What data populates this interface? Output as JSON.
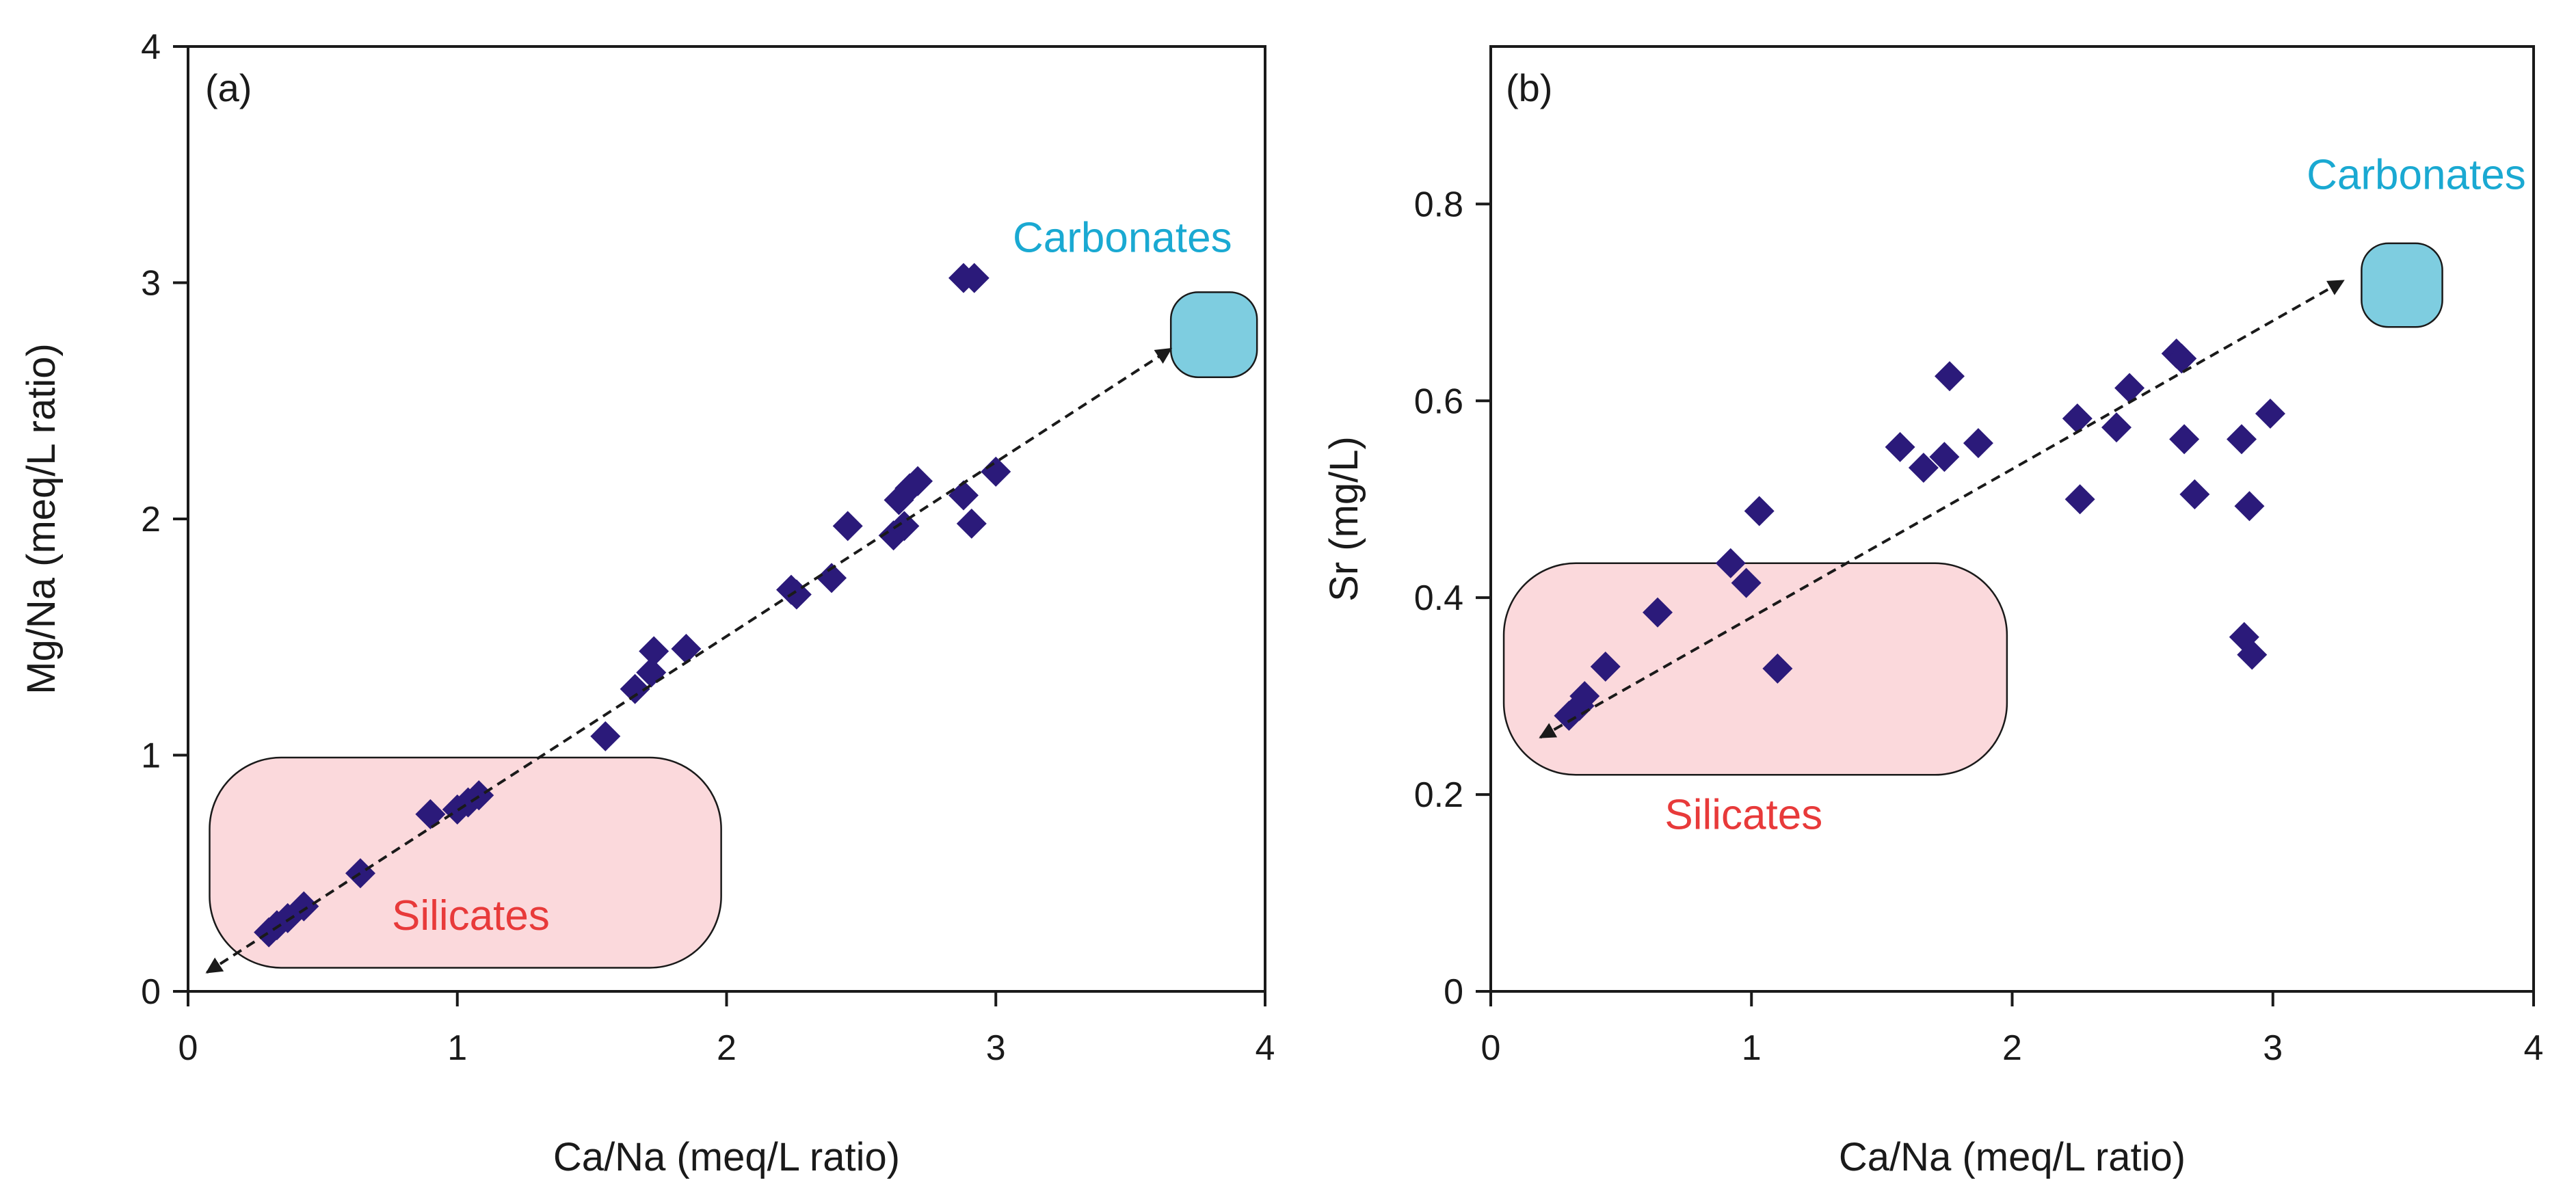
{
  "colors": {
    "marker": "#2b1a7a",
    "silicates_fill": "#fbd9dc",
    "carbonates_fill": "#7ecde0",
    "silicates_text": "#e83a3a",
    "carbonates_text": "#1aa9d2",
    "axis": "#1a1a1a"
  },
  "chart_data": [
    {
      "type": "scatter",
      "panel_label": "(a)",
      "xlabel": "Ca/Na  (meq/L ratio)",
      "ylabel": "Mg/Na (meq/L ratio)",
      "xlim": [
        0,
        4
      ],
      "ylim": [
        0,
        4
      ],
      "x_ticks": [
        0,
        1,
        2,
        3,
        4
      ],
      "y_ticks": [
        0,
        1,
        2,
        3,
        4
      ],
      "x_tick_labels": [
        "0",
        "1",
        "2",
        "3",
        "4"
      ],
      "y_tick_labels": [
        "0",
        "1",
        "2",
        "3",
        "4"
      ],
      "points": [
        [
          0.3,
          0.25
        ],
        [
          0.33,
          0.28
        ],
        [
          0.37,
          0.31
        ],
        [
          0.43,
          0.36
        ],
        [
          0.64,
          0.5
        ],
        [
          0.9,
          0.75
        ],
        [
          1.0,
          0.77
        ],
        [
          1.04,
          0.8
        ],
        [
          1.08,
          0.83
        ],
        [
          1.55,
          1.08
        ],
        [
          1.66,
          1.28
        ],
        [
          1.72,
          1.35
        ],
        [
          1.73,
          1.44
        ],
        [
          1.85,
          1.45
        ],
        [
          2.24,
          1.7
        ],
        [
          2.26,
          1.68
        ],
        [
          2.39,
          1.75
        ],
        [
          2.45,
          1.97
        ],
        [
          2.62,
          1.93
        ],
        [
          2.64,
          2.08
        ],
        [
          2.66,
          1.97
        ],
        [
          2.68,
          2.13
        ],
        [
          2.71,
          2.16
        ],
        [
          2.88,
          2.1
        ],
        [
          2.91,
          1.98
        ],
        [
          3.0,
          2.2
        ],
        [
          2.88,
          3.02
        ],
        [
          2.92,
          3.02
        ]
      ],
      "trend_arrow": {
        "start": [
          0.07,
          0.08
        ],
        "end": [
          3.65,
          2.72
        ]
      },
      "regions": [
        {
          "label": "Silicates",
          "x_range": [
            0.08,
            1.98
          ],
          "y_range": [
            0.1,
            0.99
          ],
          "label_at": [
            1.05,
            0.26
          ]
        },
        {
          "label": "Carbonates",
          "x_range": [
            3.65,
            3.97
          ],
          "y_range": [
            2.6,
            2.96
          ],
          "label_at": [
            3.47,
            3.13
          ]
        }
      ]
    },
    {
      "type": "scatter",
      "panel_label": "(b)",
      "xlabel": "Ca/Na  (meq/L ratio)",
      "ylabel": "Sr (mg/L)",
      "xlim": [
        0,
        4
      ],
      "ylim": [
        0,
        0.96
      ],
      "x_ticks": [
        0,
        1,
        2,
        3,
        4
      ],
      "y_ticks": [
        0,
        0.2,
        0.4,
        0.6,
        0.8
      ],
      "x_tick_labels": [
        "0",
        "1",
        "2",
        "3",
        "4"
      ],
      "y_tick_labels": [
        "0",
        "0.2",
        "0.4",
        "0.6",
        "0.8"
      ],
      "points": [
        [
          0.3,
          0.28
        ],
        [
          0.34,
          0.29
        ],
        [
          0.36,
          0.3
        ],
        [
          0.44,
          0.33
        ],
        [
          0.64,
          0.385
        ],
        [
          0.92,
          0.435
        ],
        [
          0.98,
          0.415
        ],
        [
          1.03,
          0.488
        ],
        [
          1.1,
          0.328
        ],
        [
          1.57,
          0.553
        ],
        [
          1.66,
          0.532
        ],
        [
          1.74,
          0.543
        ],
        [
          1.76,
          0.625
        ],
        [
          1.87,
          0.557
        ],
        [
          2.25,
          0.582
        ],
        [
          2.26,
          0.5
        ],
        [
          2.4,
          0.573
        ],
        [
          2.45,
          0.613
        ],
        [
          2.63,
          0.648
        ],
        [
          2.65,
          0.643
        ],
        [
          2.66,
          0.561
        ],
        [
          2.7,
          0.505
        ],
        [
          2.88,
          0.561
        ],
        [
          2.89,
          0.36
        ],
        [
          2.91,
          0.493
        ],
        [
          2.92,
          0.342
        ],
        [
          2.99,
          0.587
        ]
      ],
      "trend_arrow": {
        "start": [
          0.19,
          0.258
        ],
        "end": [
          3.27,
          0.722
        ]
      },
      "regions": [
        {
          "label": "Silicates",
          "x_range": [
            0.05,
            1.98
          ],
          "y_range": [
            0.22,
            0.435
          ],
          "label_at": [
            0.97,
            0.165
          ]
        },
        {
          "label": "Carbonates",
          "x_range": [
            3.34,
            3.65
          ],
          "y_range": [
            0.675,
            0.76
          ],
          "label_at": [
            3.55,
            0.815
          ]
        }
      ]
    }
  ]
}
